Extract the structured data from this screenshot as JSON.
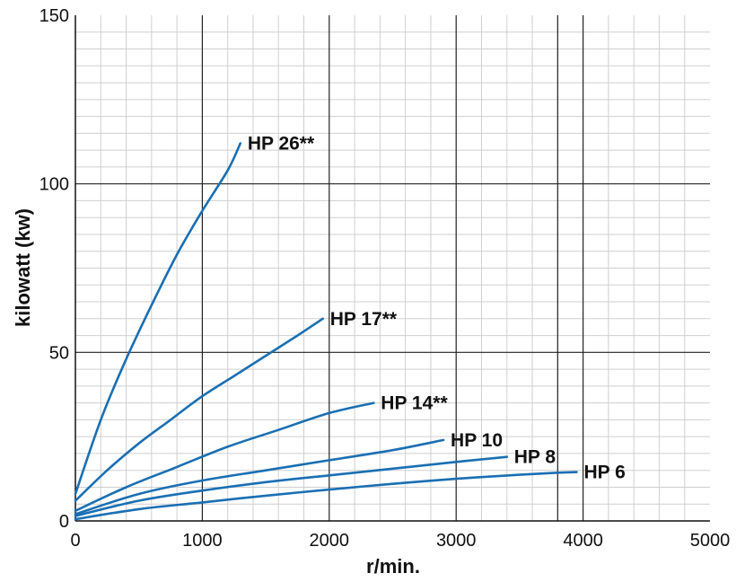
{
  "chart_data": {
    "type": "line",
    "title": "",
    "xlabel": "r/min.",
    "ylabel": "kilowatt (kw)",
    "xlim": [
      0,
      5000
    ],
    "ylim": [
      0,
      150
    ],
    "x_ticks": [
      "0",
      "1000",
      "2000",
      "3000",
      "4000",
      "5000"
    ],
    "y_ticks": [
      "0",
      "50",
      "100",
      "150"
    ],
    "grid": true,
    "line_color": "#1a6fb3",
    "series": [
      {
        "name": "HP 26**",
        "x": [
          0,
          200,
          400,
          600,
          800,
          1000,
          1200,
          1300
        ],
        "y": [
          8,
          30,
          48,
          64,
          79,
          92,
          104,
          112
        ]
      },
      {
        "name": "HP 17**",
        "x": [
          0,
          250,
          500,
          750,
          1000,
          1250,
          1500,
          1750,
          1950
        ],
        "y": [
          6,
          15,
          23,
          30,
          37,
          43,
          49,
          55,
          60
        ]
      },
      {
        "name": "HP 14**",
        "x": [
          0,
          400,
          800,
          1200,
          1600,
          2000,
          2350
        ],
        "y": [
          3,
          10,
          16,
          22,
          27,
          32,
          35
        ]
      },
      {
        "name": "HP 10",
        "x": [
          0,
          500,
          1000,
          1500,
          2000,
          2500,
          2900
        ],
        "y": [
          2,
          8,
          12,
          15,
          18,
          21,
          24
        ]
      },
      {
        "name": "HP 8",
        "x": [
          0,
          500,
          1000,
          1500,
          2000,
          2500,
          3000,
          3400
        ],
        "y": [
          1.5,
          6,
          9,
          11.5,
          13.5,
          15.5,
          17.5,
          19
        ]
      },
      {
        "name": "HP 6",
        "x": [
          0,
          500,
          1000,
          1500,
          2000,
          2500,
          3000,
          3500,
          3800,
          3950
        ],
        "y": [
          0.5,
          3.5,
          5.5,
          7.5,
          9.3,
          11,
          12.5,
          13.7,
          14.3,
          14.5
        ]
      }
    ]
  }
}
